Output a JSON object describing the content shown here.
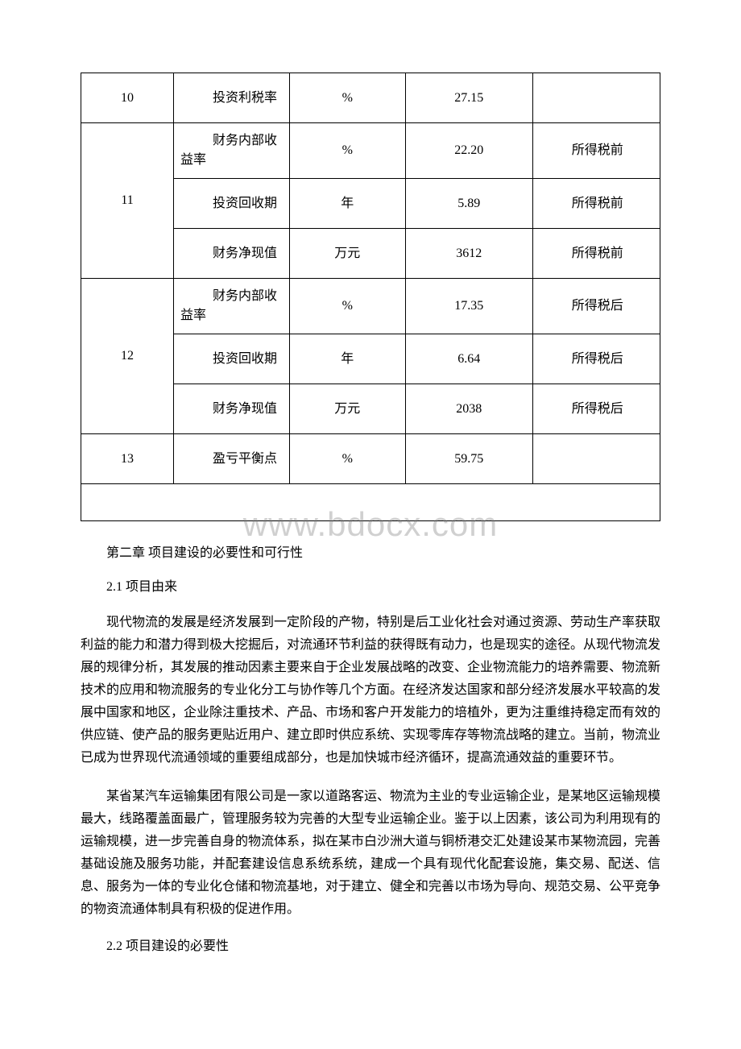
{
  "watermark": "www.bdocx.com",
  "table": {
    "rows": [
      {
        "num": "10",
        "label": "投资利税率",
        "unit": "%",
        "value": "27.15",
        "note": "",
        "rowspan": 1
      },
      {
        "num": "11",
        "label": "财务内部收益率",
        "unit": "%",
        "value": "22.20",
        "note": "所得税前",
        "rowspan": 3
      },
      {
        "num": "",
        "label": "投资回收期",
        "unit": "年",
        "value": "5.89",
        "note": "所得税前"
      },
      {
        "num": "",
        "label": "财务净现值",
        "unit": "万元",
        "value": "3612",
        "note": "所得税前"
      },
      {
        "num": "12",
        "label": "财务内部收益率",
        "unit": "%",
        "value": "17.35",
        "note": "所得税后",
        "rowspan": 3
      },
      {
        "num": "",
        "label": "投资回收期",
        "unit": "年",
        "value": "6.64",
        "note": "所得税后"
      },
      {
        "num": "",
        "label": "财务净现值",
        "unit": "万元",
        "value": "2038",
        "note": "所得税后"
      },
      {
        "num": "13",
        "label": "盈亏平衡点",
        "unit": "%",
        "value": "59.75",
        "note": "",
        "rowspan": 1
      }
    ]
  },
  "sections": {
    "chapter_title": "第二章 项目建设的必要性和可行性",
    "s21_title": "2.1 项目由来",
    "p1": "现代物流的发展是经济发展到一定阶段的产物，特别是后工业化社会对通过资源、劳动生产率获取利益的能力和潜力得到极大挖掘后，对流通环节利益的获得既有动力，也是现实的途径。从现代物流发展的规律分析，其发展的推动因素主要来自于企业发展战略的改变、企业物流能力的培养需要、物流新技术的应用和物流服务的专业化分工与协作等几个方面。在经济发达国家和部分经济发展水平较高的发展中国家和地区，企业除注重技术、产品、市场和客户开发能力的培植外，更为注重维持稳定而有效的供应链、使产品的服务更贴近用户、建立即时供应系统、实现零库存等物流战略的建立。当前，物流业已成为世界现代流通领域的重要组成部分，也是加快城市经济循环，提高流通效益的重要环节。",
    "p2": "某省某汽车运输集团有限公司是一家以道路客运、物流为主业的专业运输企业，是某地区运输规模最大，线路覆盖面最广，管理服务较为完善的大型专业运输企业。鉴于以上因素，该公司为利用现有的运输规模，进一步完善自身的物流体系，拟在某市白沙洲大道与铜桥港交汇处建设某市某物流园，完善基础设施及服务功能，并配套建设信息系统系统，建成一个具有现代化配套设施，集交易、配送、信息、服务为一体的专业化仓储和物流基地，对于建立、健全和完善以市场为导向、规范交易、公平竞争的物资流通体制具有积极的促进作用。",
    "s22_title": "2.2 项目建设的必要性"
  }
}
